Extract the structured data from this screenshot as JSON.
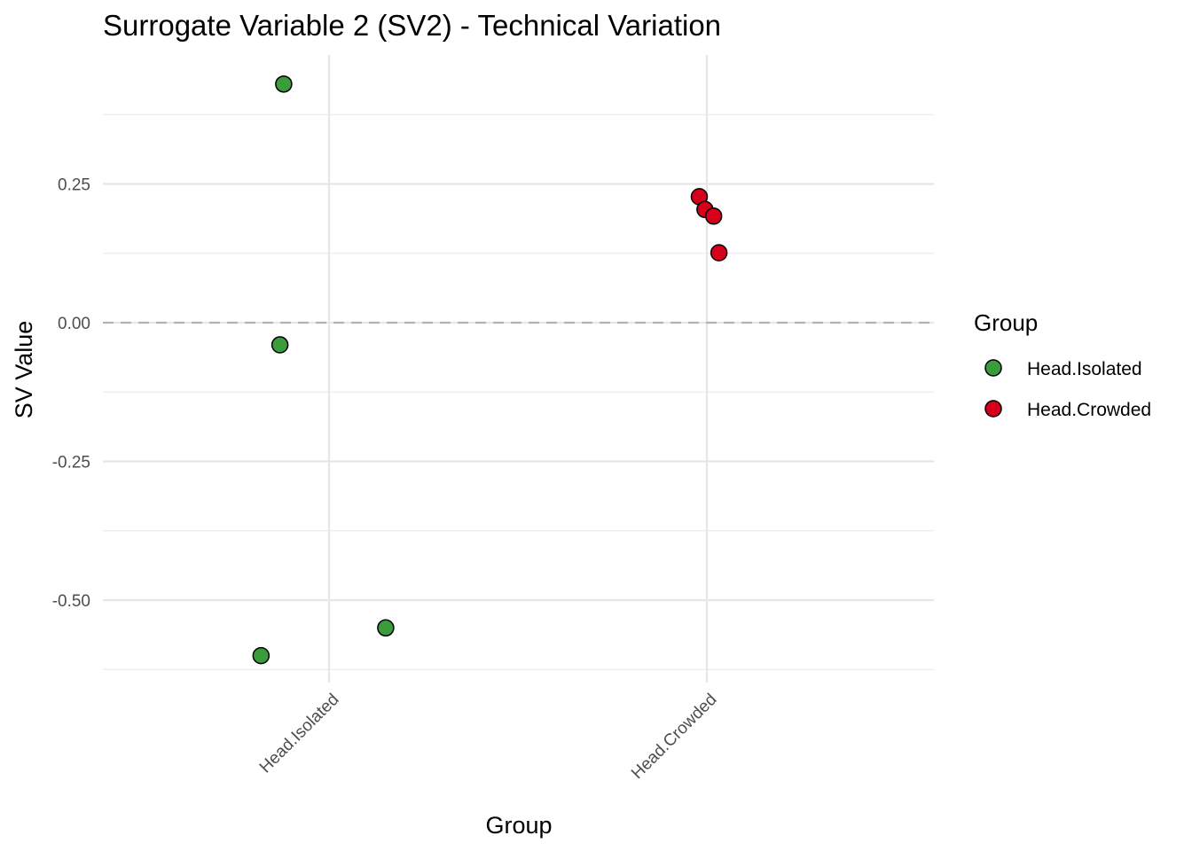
{
  "chart_data": {
    "type": "scatter",
    "title": "Surrogate Variable 2 (SV2) - Technical Variation",
    "xlabel": "Group",
    "ylabel": "SV Value",
    "categories": [
      "Head.Isolated",
      "Head.Crowded"
    ],
    "ylim": [
      -0.62,
      0.47
    ],
    "yticks": [
      -0.5,
      -0.25,
      0.0,
      0.25
    ],
    "ytick_labels": [
      "-0.50",
      "-0.25",
      "0.00",
      "0.25"
    ],
    "reference_line": {
      "y": 0.0,
      "style": "dashed"
    },
    "grid": true,
    "series": [
      {
        "name": "Head.Isolated",
        "color": "#3a9c3a",
        "points": [
          {
            "category": "Head.Isolated",
            "jitter": -0.12,
            "y": 0.43
          },
          {
            "category": "Head.Isolated",
            "jitter": -0.13,
            "y": -0.04
          },
          {
            "category": "Head.Isolated",
            "jitter": -0.18,
            "y": -0.6
          },
          {
            "category": "Head.Isolated",
            "jitter": 0.15,
            "y": -0.55
          }
        ]
      },
      {
        "name": "Head.Crowded",
        "color": "#d7001a",
        "points": [
          {
            "category": "Head.Crowded",
            "jitter": -0.02,
            "y": 0.227
          },
          {
            "category": "Head.Crowded",
            "jitter": -0.005,
            "y": 0.204
          },
          {
            "category": "Head.Crowded",
            "jitter": 0.018,
            "y": 0.192
          },
          {
            "category": "Head.Crowded",
            "jitter": 0.032,
            "y": 0.126
          }
        ]
      }
    ],
    "legend": {
      "title": "Group",
      "position": "right",
      "entries": [
        "Head.Isolated",
        "Head.Crowded"
      ]
    }
  }
}
